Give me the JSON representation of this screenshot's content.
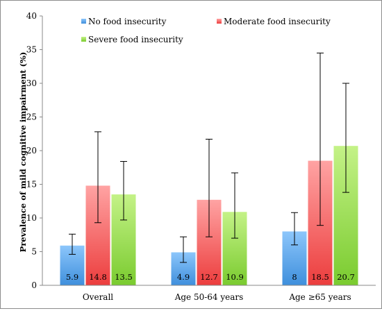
{
  "chart_data": {
    "type": "bar",
    "title": "",
    "xlabel": "",
    "ylabel": "Prevalence of mild cognitive impairment (%)",
    "ylim": [
      0,
      40
    ],
    "yticks": [
      0,
      5,
      10,
      15,
      20,
      25,
      30,
      35,
      40
    ],
    "grid": false,
    "legend_position": "top",
    "categories": [
      "Overall",
      "Age 50-64 years",
      "Age ≥65 years"
    ],
    "series": [
      {
        "name": "No food insecurity",
        "color": "#5aa5eb",
        "values": [
          5.9,
          4.9,
          8
        ],
        "value_labels": [
          "5.9",
          "4.9",
          "8"
        ],
        "error_low": [
          4.6,
          3.4,
          6.0
        ],
        "error_high": [
          7.6,
          7.2,
          10.8
        ]
      },
      {
        "name": "Moderate food insecurity",
        "color": "#f16e6e",
        "values": [
          14.8,
          12.7,
          18.5
        ],
        "value_labels": [
          "14.8",
          "12.7",
          "18.5"
        ],
        "error_low": [
          9.3,
          7.2,
          8.9
        ],
        "error_high": [
          22.8,
          21.7,
          34.5
        ]
      },
      {
        "name": "Severe food insecurity",
        "color": "#94dd4c",
        "values": [
          13.5,
          10.9,
          20.7
        ],
        "value_labels": [
          "13.5",
          "10.9",
          "20.7"
        ],
        "error_low": [
          9.7,
          7.0,
          13.8
        ],
        "error_high": [
          18.4,
          16.7,
          30.0
        ]
      }
    ]
  }
}
